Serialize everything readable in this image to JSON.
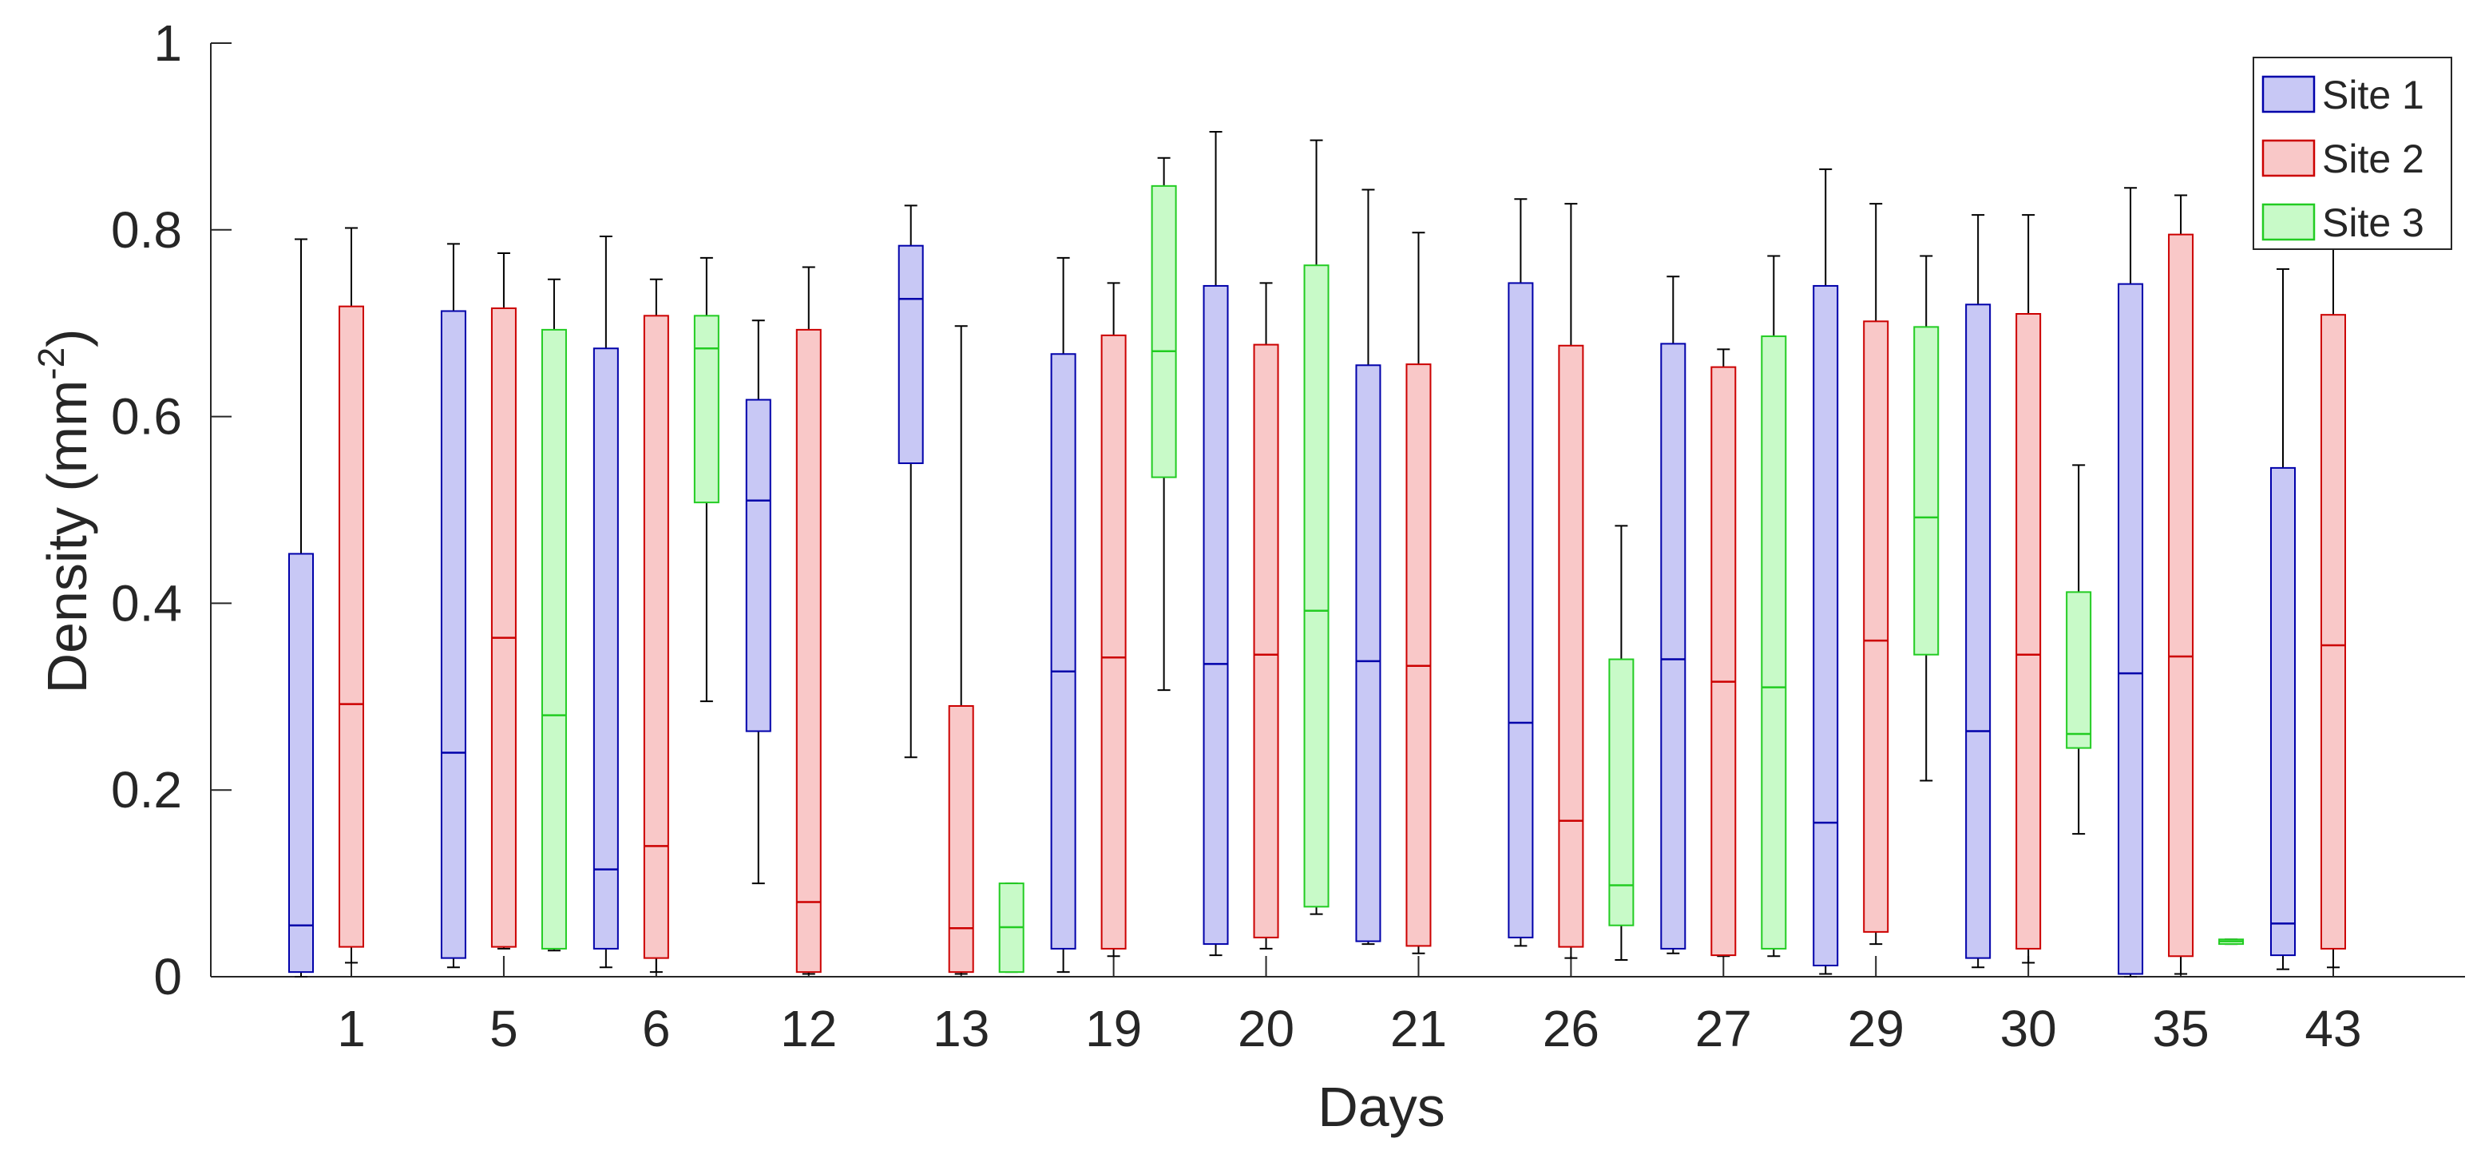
{
  "chart_data": {
    "type": "boxplot",
    "title": "",
    "xlabel": "Days",
    "ylabel_main": "Density (mm",
    "ylabel_sup": "-2",
    "ylabel_close": ")",
    "ylim": [
      0,
      1
    ],
    "yticks": [
      0,
      0.2,
      0.4,
      0.6,
      0.8,
      1
    ],
    "ytick_labels": [
      "0",
      "0.2",
      "0.4",
      "0.6",
      "0.8",
      "1"
    ],
    "legend_position": "top-right",
    "categories": [
      "1",
      "5",
      "6",
      "12",
      "13",
      "19",
      "20",
      "21",
      "26",
      "27",
      "29",
      "30",
      "35",
      "43"
    ],
    "series": [
      {
        "name": "Site 1",
        "edge_color": "#0000aa",
        "fill_color": "#c8c8f5",
        "boxes": [
          {
            "day": "1",
            "whisker_low": 0,
            "q1": 0.005,
            "median": 0.055,
            "q3": 0.453,
            "whisker_high": 0.79
          },
          {
            "day": "5",
            "whisker_low": 0.01,
            "q1": 0.02,
            "median": 0.24,
            "q3": 0.713,
            "whisker_high": 0.785
          },
          {
            "day": "6",
            "whisker_low": 0.01,
            "q1": 0.03,
            "median": 0.115,
            "q3": 0.673,
            "whisker_high": 0.793
          },
          {
            "day": "12",
            "whisker_low": 0.1,
            "q1": 0.263,
            "median": 0.51,
            "q3": 0.618,
            "whisker_high": 0.703
          },
          {
            "day": "13",
            "whisker_low": 0.235,
            "q1": 0.55,
            "median": 0.726,
            "q3": 0.783,
            "whisker_high": 0.826
          },
          {
            "day": "19",
            "whisker_low": 0.005,
            "q1": 0.03,
            "median": 0.327,
            "q3": 0.667,
            "whisker_high": 0.77
          },
          {
            "day": "20",
            "whisker_low": 0.023,
            "q1": 0.035,
            "median": 0.335,
            "q3": 0.74,
            "whisker_high": 0.905
          },
          {
            "day": "21",
            "whisker_low": 0.035,
            "q1": 0.038,
            "median": 0.338,
            "q3": 0.655,
            "whisker_high": 0.843
          },
          {
            "day": "26",
            "whisker_low": 0.033,
            "q1": 0.042,
            "median": 0.272,
            "q3": 0.743,
            "whisker_high": 0.833
          },
          {
            "day": "27",
            "whisker_low": 0.025,
            "q1": 0.03,
            "median": 0.34,
            "q3": 0.678,
            "whisker_high": 0.75
          },
          {
            "day": "29",
            "whisker_low": 0.003,
            "q1": 0.012,
            "median": 0.165,
            "q3": 0.74,
            "whisker_high": 0.865
          },
          {
            "day": "30",
            "whisker_low": 0.01,
            "q1": 0.02,
            "median": 0.263,
            "q3": 0.72,
            "whisker_high": 0.816
          },
          {
            "day": "35",
            "whisker_low": 0,
            "q1": 0.003,
            "median": 0.325,
            "q3": 0.742,
            "whisker_high": 0.845
          },
          {
            "day": "43",
            "whisker_low": 0.008,
            "q1": 0.023,
            "median": 0.057,
            "q3": 0.545,
            "whisker_high": 0.758
          }
        ]
      },
      {
        "name": "Site 2",
        "edge_color": "#cc0000",
        "fill_color": "#f9c8c8",
        "boxes": [
          {
            "day": "1",
            "whisker_low": 0.015,
            "q1": 0.032,
            "median": 0.292,
            "q3": 0.718,
            "whisker_high": 0.802
          },
          {
            "day": "5",
            "whisker_low": 0.03,
            "q1": 0.032,
            "median": 0.363,
            "q3": 0.716,
            "whisker_high": 0.775
          },
          {
            "day": "6",
            "whisker_low": 0.005,
            "q1": 0.02,
            "median": 0.14,
            "q3": 0.708,
            "whisker_high": 0.747
          },
          {
            "day": "12",
            "whisker_low": 0.003,
            "q1": 0.005,
            "median": 0.08,
            "q3": 0.693,
            "whisker_high": 0.76
          },
          {
            "day": "13",
            "whisker_low": 0.003,
            "q1": 0.005,
            "median": 0.052,
            "q3": 0.29,
            "whisker_high": 0.697
          },
          {
            "day": "19",
            "whisker_low": 0.022,
            "q1": 0.03,
            "median": 0.342,
            "q3": 0.687,
            "whisker_high": 0.743
          },
          {
            "day": "20",
            "whisker_low": 0.03,
            "q1": 0.042,
            "median": 0.345,
            "q3": 0.677,
            "whisker_high": 0.743
          },
          {
            "day": "21",
            "whisker_low": 0.025,
            "q1": 0.033,
            "median": 0.333,
            "q3": 0.656,
            "whisker_high": 0.797
          },
          {
            "day": "26",
            "whisker_low": 0.02,
            "q1": 0.032,
            "median": 0.167,
            "q3": 0.676,
            "whisker_high": 0.828
          },
          {
            "day": "27",
            "whisker_low": 0.022,
            "q1": 0.023,
            "median": 0.316,
            "q3": 0.653,
            "whisker_high": 0.672
          },
          {
            "day": "29",
            "whisker_low": 0.035,
            "q1": 0.048,
            "median": 0.36,
            "q3": 0.702,
            "whisker_high": 0.828
          },
          {
            "day": "30",
            "whisker_low": 0.015,
            "q1": 0.03,
            "median": 0.345,
            "q3": 0.71,
            "whisker_high": 0.816
          },
          {
            "day": "35",
            "whisker_low": 0.003,
            "q1": 0.022,
            "median": 0.343,
            "q3": 0.795,
            "whisker_high": 0.837
          },
          {
            "day": "43",
            "whisker_low": 0.01,
            "q1": 0.03,
            "median": 0.355,
            "q3": 0.709,
            "whisker_high": 0.8
          }
        ]
      },
      {
        "name": "Site 3",
        "edge_color": "#22cc22",
        "fill_color": "#c8fac8",
        "boxes": [
          {
            "day": "1",
            "empty": true
          },
          {
            "day": "5",
            "whisker_low": 0.028,
            "q1": 0.03,
            "median": 0.28,
            "q3": 0.693,
            "whisker_high": 0.747
          },
          {
            "day": "6",
            "whisker_low": 0.295,
            "q1": 0.508,
            "median": 0.673,
            "q3": 0.708,
            "whisker_high": 0.77
          },
          {
            "day": "12",
            "empty": true
          },
          {
            "day": "13",
            "whisker_low": 0.005,
            "q1": 0.005,
            "median": 0.053,
            "q3": 0.1,
            "whisker_high": 0.1
          },
          {
            "day": "19",
            "whisker_low": 0.307,
            "q1": 0.535,
            "median": 0.67,
            "q3": 0.847,
            "whisker_high": 0.877
          },
          {
            "day": "20",
            "whisker_low": 0.067,
            "q1": 0.075,
            "median": 0.392,
            "q3": 0.762,
            "whisker_high": 0.896
          },
          {
            "day": "21",
            "empty": true
          },
          {
            "day": "26",
            "whisker_low": 0.018,
            "q1": 0.055,
            "median": 0.098,
            "q3": 0.34,
            "whisker_high": 0.483
          },
          {
            "day": "27",
            "whisker_low": 0.022,
            "q1": 0.03,
            "median": 0.31,
            "q3": 0.686,
            "whisker_high": 0.772
          },
          {
            "day": "29",
            "whisker_low": 0.21,
            "q1": 0.345,
            "median": 0.492,
            "q3": 0.696,
            "whisker_high": 0.772
          },
          {
            "day": "30",
            "whisker_low": 0.153,
            "q1": 0.245,
            "median": 0.26,
            "q3": 0.412,
            "whisker_high": 0.548
          },
          {
            "day": "35",
            "whisker_low": 0.035,
            "q1": 0.035,
            "median": 0.038,
            "q3": 0.04,
            "whisker_high": 0.04
          },
          {
            "day": "43",
            "empty": true
          }
        ]
      }
    ]
  }
}
